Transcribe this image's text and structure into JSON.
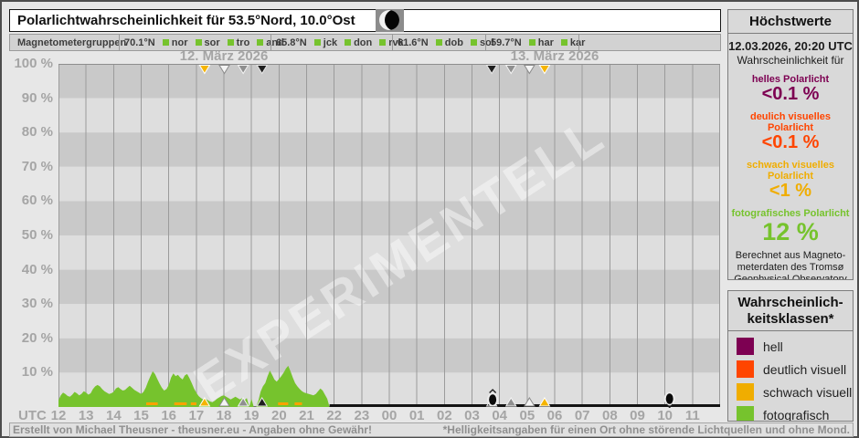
{
  "header": {
    "title": "Polarlichtwahrscheinlichkeit für 53.5°Nord, 10.0°Ost",
    "moon_icon": "waning-crescent-moon"
  },
  "magnetometers": {
    "label": "Magnetometergruppen",
    "groups": [
      {
        "lat": "70.1°N",
        "stations": [
          "nor",
          "sor",
          "tro",
          "and"
        ]
      },
      {
        "lat": "65.8°N",
        "stations": [
          "jck",
          "don",
          "rvk"
        ]
      },
      {
        "lat": "61.6°N",
        "stations": [
          "dob",
          "sol"
        ]
      },
      {
        "lat": "59.7°N",
        "stations": [
          "har",
          "kar"
        ]
      }
    ]
  },
  "chart_data": {
    "type": "area",
    "day1_label": "12. März 2026",
    "day2_label": "13. März 2026",
    "watermark": "EXPERIMENTELL",
    "x_axis": {
      "label": "UTC",
      "start_hour": 12,
      "minutes_span": 1440,
      "hours": [
        "12",
        "13",
        "14",
        "15",
        "16",
        "17",
        "18",
        "19",
        "20",
        "21",
        "22",
        "23",
        "00",
        "01",
        "02",
        "03",
        "04",
        "05",
        "06",
        "07",
        "08",
        "09",
        "10",
        "11"
      ]
    },
    "y_axis": {
      "min": 0,
      "max": 100,
      "unit": "%",
      "grid_bands_pct": 10,
      "tick_labels": [
        "100 %",
        "90 %",
        "80 %",
        "70 %",
        "60 %",
        "50 %",
        "40 %",
        "30 %",
        "20 %",
        "10 %"
      ]
    },
    "series": [
      {
        "name": "fotografisch",
        "unit": "%",
        "color_key": "foto",
        "points_min_pct": [
          [
            0,
            2.0
          ],
          [
            5,
            3.4
          ],
          [
            10,
            4.2
          ],
          [
            15,
            3.8
          ],
          [
            20,
            3.2
          ],
          [
            25,
            3.0
          ],
          [
            30,
            3.6
          ],
          [
            35,
            4.4
          ],
          [
            40,
            4.0
          ],
          [
            45,
            3.4
          ],
          [
            50,
            3.8
          ],
          [
            55,
            4.6
          ],
          [
            60,
            4.2
          ],
          [
            65,
            3.6
          ],
          [
            70,
            4.0
          ],
          [
            75,
            5.2
          ],
          [
            80,
            6.0
          ],
          [
            85,
            6.4
          ],
          [
            90,
            6.0
          ],
          [
            95,
            5.2
          ],
          [
            100,
            4.6
          ],
          [
            105,
            4.2
          ],
          [
            110,
            3.8
          ],
          [
            115,
            4.0
          ],
          [
            120,
            4.4
          ],
          [
            125,
            5.4
          ],
          [
            130,
            5.8
          ],
          [
            135,
            5.2
          ],
          [
            140,
            4.8
          ],
          [
            145,
            5.0
          ],
          [
            150,
            5.6
          ],
          [
            155,
            6.2
          ],
          [
            160,
            5.6
          ],
          [
            165,
            5.0
          ],
          [
            170,
            4.6
          ],
          [
            175,
            4.2
          ],
          [
            180,
            3.8
          ],
          [
            185,
            4.4
          ],
          [
            190,
            5.6
          ],
          [
            195,
            7.4
          ],
          [
            200,
            9.0
          ],
          [
            205,
            10.4
          ],
          [
            210,
            9.6
          ],
          [
            215,
            8.2
          ],
          [
            220,
            6.8
          ],
          [
            225,
            5.6
          ],
          [
            230,
            4.8
          ],
          [
            235,
            5.2
          ],
          [
            240,
            6.4
          ],
          [
            245,
            8.6
          ],
          [
            250,
            9.8
          ],
          [
            255,
            9.0
          ],
          [
            260,
            9.4
          ],
          [
            265,
            8.6
          ],
          [
            270,
            8.0
          ],
          [
            275,
            9.2
          ],
          [
            280,
            9.6
          ],
          [
            285,
            8.4
          ],
          [
            290,
            7.0
          ],
          [
            295,
            5.4
          ],
          [
            300,
            4.2
          ],
          [
            305,
            3.2
          ],
          [
            310,
            2.6
          ],
          [
            315,
            2.2
          ],
          [
            320,
            2.4
          ],
          [
            325,
            2.0
          ],
          [
            330,
            1.6
          ],
          [
            335,
            1.4
          ],
          [
            340,
            1.8
          ],
          [
            345,
            2.4
          ],
          [
            350,
            2.8
          ],
          [
            355,
            3.2
          ],
          [
            360,
            3.4
          ],
          [
            365,
            3.0
          ],
          [
            370,
            2.6
          ],
          [
            375,
            2.2
          ],
          [
            380,
            2.6
          ],
          [
            385,
            3.0
          ],
          [
            390,
            2.6
          ],
          [
            395,
            2.2
          ],
          [
            400,
            2.6
          ],
          [
            405,
            2.0
          ],
          [
            410,
            2.6
          ],
          [
            415,
            0
          ],
          [
            420,
            2.4
          ],
          [
            425,
            0
          ],
          [
            430,
            0
          ],
          [
            435,
            1.8
          ],
          [
            440,
            4.5
          ],
          [
            445,
            6.0
          ],
          [
            450,
            7.0
          ],
          [
            455,
            9.0
          ],
          [
            460,
            10.6
          ],
          [
            465,
            9.4
          ],
          [
            470,
            8.0
          ],
          [
            475,
            7.4
          ],
          [
            480,
            8.2
          ],
          [
            485,
            9.0
          ],
          [
            490,
            10.0
          ],
          [
            495,
            11.2
          ],
          [
            500,
            12.0
          ],
          [
            505,
            10.4
          ],
          [
            510,
            8.6
          ],
          [
            515,
            7.0
          ],
          [
            520,
            6.0
          ],
          [
            525,
            5.2
          ],
          [
            530,
            4.6
          ],
          [
            535,
            4.2
          ],
          [
            540,
            4.0
          ],
          [
            545,
            3.8
          ],
          [
            550,
            3.6
          ],
          [
            555,
            3.4
          ],
          [
            560,
            3.8
          ],
          [
            565,
            4.6
          ],
          [
            570,
            5.4
          ],
          [
            575,
            4.8
          ],
          [
            580,
            3.6
          ],
          [
            585,
            2.4
          ],
          [
            590,
            0
          ]
        ]
      }
    ],
    "schwach_segments_min": [
      [
        191,
        216
      ],
      [
        252,
        279
      ],
      [
        288,
        300
      ],
      [
        478,
        500
      ],
      [
        514,
        530
      ]
    ],
    "zero_line_from_min": 590,
    "twilight_markers": [
      {
        "min": 318,
        "tone": "amber"
      },
      {
        "min": 361,
        "tone": "light"
      },
      {
        "min": 402,
        "tone": "gray"
      },
      {
        "min": 443,
        "tone": "dark"
      },
      {
        "min": 943,
        "tone": "dark"
      },
      {
        "min": 985,
        "tone": "gray"
      },
      {
        "min": 1025,
        "tone": "light"
      },
      {
        "min": 1058,
        "tone": "amber"
      }
    ],
    "moon_events": [
      {
        "min": 945,
        "type": "moonrise"
      },
      {
        "min": 1330,
        "type": "moonset"
      }
    ]
  },
  "sidebar": {
    "max_panel": {
      "header": "Höchstwerte",
      "timestamp": "12.03.2026, 20:20 UTC",
      "subtitle": "Wahrscheinlichkeit für",
      "entries": [
        {
          "label": "helles Polarlicht",
          "value": "<0.1 %",
          "color_key": "hell"
        },
        {
          "label": "deulich visuelles Polarlicht",
          "value": "<0.1 %",
          "color_key": "deutlich"
        },
        {
          "label": "schwach visuelles Polarlicht",
          "value": "<1 %",
          "color_key": "schwach"
        },
        {
          "label": "fotografisches Polarlicht",
          "value": "12 %",
          "color_key": "foto"
        }
      ],
      "note": "Berechnet aus Magneto-\nmeterdaten des Tromsø\nGeophysical Observatory\nhttp://geo.phys.uit.no"
    },
    "legend_panel": {
      "header": "Wahrscheinlich-\nkeitsklassen*",
      "items": [
        {
          "label": "hell",
          "color_key": "hell"
        },
        {
          "label": "deutlich visuell",
          "color_key": "deutlich"
        },
        {
          "label": "schwach visuell",
          "color_key": "schwach"
        },
        {
          "label": "fotografisch",
          "color_key": "foto"
        }
      ]
    }
  },
  "status_bar": {
    "left": "Erstellt von Michael Theusner - theusner.eu - Angaben ohne Gewähr!",
    "right": "*Helligkeitsangaben für einen Ort ohne störende Lichtquellen und ohne Mond."
  },
  "colors": {
    "hell": "#7d0052",
    "deutlich": "#ff4500",
    "schwach": "#f0ad00",
    "foto": "#76c32d",
    "band_dark": "#c9c9c9",
    "band_light": "#dedede",
    "grid": "#9b9b9b",
    "zero_line": "#141414",
    "schwach_segment": "#ffa200",
    "watermark": "#ffffff"
  },
  "marker_palette": {
    "amber": {
      "fill": "#f5b400",
      "stroke": "#ffffff"
    },
    "light": {
      "fill": "#f4f4f4",
      "stroke": "#8a8a8a"
    },
    "gray": {
      "fill": "#8f8f8f",
      "stroke": "#f4f4f4"
    },
    "dark": {
      "fill": "#1f1f1f",
      "stroke": "#e8e8e8"
    }
  }
}
